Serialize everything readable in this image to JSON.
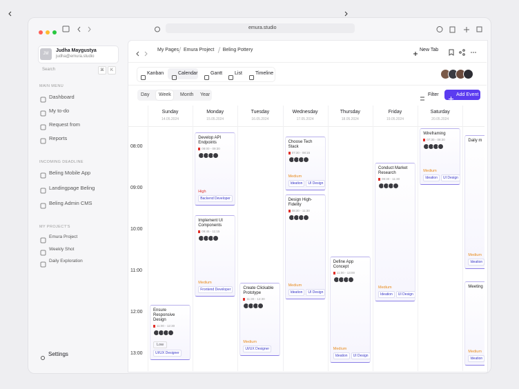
{
  "browser": {
    "url": "emura.studio"
  },
  "sidebar": {
    "user": {
      "initials": "JM",
      "name": "Judha Maygustya",
      "email": "judha@emura.studio"
    },
    "search": "Search",
    "keys": [
      "⌘",
      "K"
    ],
    "sections": [
      {
        "title": "MAIN MENU",
        "items": [
          "Dashboard",
          "My to-do",
          "Request from",
          "Reports"
        ]
      },
      {
        "title": "INCOMING DEADLINE",
        "items": [
          "Beling Mobile App",
          "Landingpage Beling",
          "Beling Admin CMS"
        ]
      },
      {
        "title": "MY PROJECT'S",
        "items": [
          "Emura Project",
          "Weekly Shot",
          "Daily Exploration"
        ]
      }
    ],
    "settings": "Settings"
  },
  "header": {
    "breadcrumbs": [
      "My Pages",
      "Emura Project",
      "Beling Pottery"
    ],
    "new_tab": "New Tab"
  },
  "toolbar": {
    "views": [
      "Kanban",
      "Calendar",
      "Gantt",
      "List",
      "Timeline"
    ],
    "ranges": [
      "Day",
      "Week",
      "Month",
      "Year"
    ],
    "filter": "Filter",
    "add_event": "Add Event"
  },
  "calendar": {
    "days": [
      {
        "name": "Sunday",
        "date": "14.05.2024"
      },
      {
        "name": "Monday",
        "date": "15.05.2024"
      },
      {
        "name": "Tuesday",
        "date": "16.05.2024"
      },
      {
        "name": "Wednesday",
        "date": "17.05.2024"
      },
      {
        "name": "Thursday",
        "date": "18.05.2024"
      },
      {
        "name": "Friday",
        "date": "19.05.2024"
      },
      {
        "name": "Saturday",
        "date": "20.05.2024"
      }
    ],
    "times": [
      "08:00",
      "09:00",
      "10:00",
      "11:00",
      "12:00",
      "13:00"
    ],
    "events": [
      {
        "title": "Ensure Responsive Design",
        "time": "11:00 - 12:30",
        "priority": "Low",
        "tags": [
          "UI/UX Designer"
        ]
      },
      {
        "title": "Develop API Endpoints",
        "time": "08:00 - 09:30",
        "priority": "High",
        "tags": [
          "Backend Developer"
        ]
      },
      {
        "title": "Implement UI Components",
        "time": "09:45 - 11:15",
        "priority": "Medium",
        "tags": [
          "Frontend Developer"
        ]
      },
      {
        "title": "Create Clickable Prototype",
        "time": "11:30 - 12:30",
        "priority": "Medium",
        "tags": [
          "UI/UX Designer"
        ]
      },
      {
        "title": "Choose Tech Stack",
        "time": "07:30 - 08:15",
        "priority": "Medium",
        "tags": [
          "Ideation",
          "UI Design"
        ]
      },
      {
        "title": "Design High-Fidelity",
        "time": "08:30 - 11:30",
        "priority": "Medium",
        "tags": [
          "Ideation",
          "UI Design"
        ]
      },
      {
        "title": "Define App Concept",
        "time": "11:00 - 13:00",
        "priority": "Medium",
        "tags": [
          "Ideation",
          "UI Design"
        ]
      },
      {
        "title": "Conduct Market Research",
        "time": "09:30 - 11:30",
        "priority": "Medium",
        "tags": [
          "Ideation",
          "UI Design"
        ]
      },
      {
        "title": "Wireframing",
        "time": "07:30 - 08:30",
        "priority": "Medium",
        "tags": [
          "Ideation",
          "UI Design"
        ]
      },
      {
        "title": "Daily m",
        "priority": "Medium",
        "tags": [
          "Ideation"
        ]
      },
      {
        "title": "Meeting",
        "priority": "Medium",
        "tags": [
          "Ideation"
        ]
      }
    ]
  }
}
